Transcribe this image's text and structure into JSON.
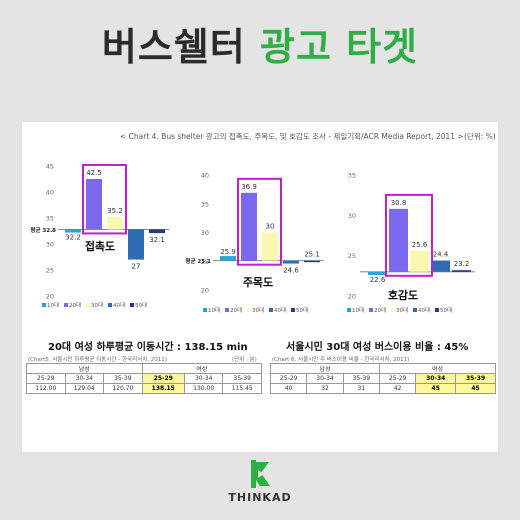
{
  "header": {
    "title_part1": "버스쉘터",
    "title_part2": "광고 타겟"
  },
  "caption": "< Chart 4. Bus shelter 광고의 접촉도, 주목도, 및 호감도 조사 - 제일기획/ACR Media Report, 2011 >",
  "unit": "(단위: %)",
  "colors": {
    "c10": "#29a6d6",
    "c20": "#7b68ee",
    "c30": "#fbf7b0",
    "c40": "#2e6db4",
    "c50": "#233a8c",
    "highlight": "#c21fcc",
    "title_green": "#2eae45"
  },
  "chart_data": [
    {
      "type": "bar",
      "title": "접촉도",
      "avg_label": "평균 32.8",
      "avg": 32.8,
      "ylim": [
        20,
        45
      ],
      "ticks": [
        20,
        25,
        30,
        35,
        40,
        45
      ],
      "categories": [
        "10대",
        "20대",
        "30대",
        "40대",
        "50대"
      ],
      "values": [
        32.2,
        42.5,
        35.2,
        27,
        32.1
      ]
    },
    {
      "type": "bar",
      "title": "주목도",
      "avg_label": "평균 25.1",
      "avg": 25.1,
      "ylim": [
        20,
        40
      ],
      "ticks": [
        20,
        25,
        30,
        35,
        40
      ],
      "categories": [
        "10대",
        "20대",
        "30대",
        "40대",
        "50대"
      ],
      "values": [
        25.9,
        36.9,
        30,
        24.6,
        25.1
      ]
    },
    {
      "type": "bar",
      "title": "호감도",
      "avg_label": "",
      "avg": 23,
      "ylim": [
        20,
        35
      ],
      "ticks": [
        20,
        25,
        30,
        35
      ],
      "categories": [
        "10대",
        "20대",
        "30대",
        "40대",
        "50대"
      ],
      "values": [
        22.6,
        30.8,
        25.6,
        24.4,
        23.2
      ]
    }
  ],
  "table1": {
    "title": "20대 여성 하루평균 이동시간 : 138.15 min",
    "caption": "(Chart5. 서울시민 하루평균 이동시간 - 한국리서치, 2011)",
    "unit": "(단위 : 분)",
    "group_male": "남성",
    "group_female": "여성",
    "ages": [
      "25-29",
      "30-34",
      "35-39",
      "25-29",
      "30-34",
      "35-39"
    ],
    "values": [
      "112.00",
      "129.04",
      "120.70",
      "138.15",
      "130.00",
      "115.45"
    ]
  },
  "table2": {
    "title": "서울시민 30대 여성 버스이용 비율 : 45%",
    "caption": "(Chart 6. 서울시민 주 버스이용 비율 - 한국리서치, 2011)",
    "group_male": "남성",
    "group_female": "여성",
    "ages": [
      "25-29",
      "30-34",
      "35-39",
      "25-29",
      "30-34",
      "35-39"
    ],
    "values": [
      "40",
      "32",
      "31",
      "42",
      "45",
      "45"
    ]
  },
  "brand": "THINKAD"
}
